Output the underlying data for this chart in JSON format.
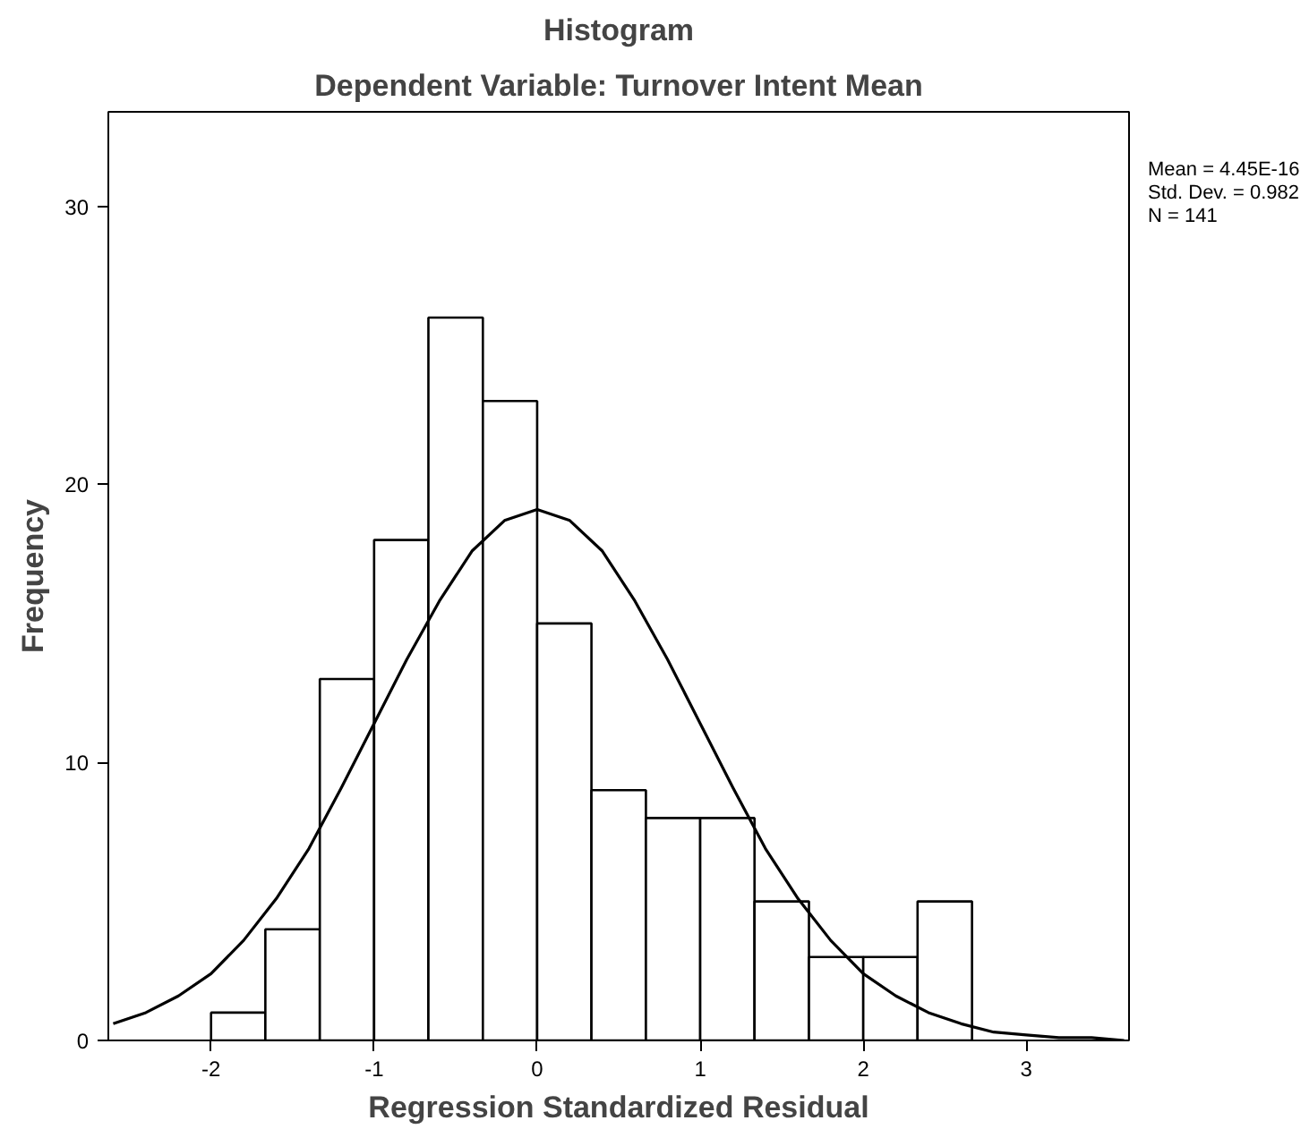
{
  "chart_data": {
    "type": "histogram",
    "title": "Histogram",
    "subtitle": "Dependent Variable: Turnover Intent Mean",
    "xlabel": "Regression Standardized Residual",
    "ylabel": "Frequency",
    "bins": [
      -2,
      -1.667,
      -1.333,
      -1,
      -0.667,
      -0.333,
      0,
      0.333,
      0.667,
      1,
      1.333,
      1.667,
      2,
      2.333,
      2.667
    ],
    "values": [
      1,
      4,
      13,
      18,
      26,
      23,
      15,
      9,
      8,
      8,
      5,
      3,
      3,
      5
    ],
    "color": "#ffffff",
    "series": [
      {
        "type": "line",
        "color": "#000000",
        "x": [
          -2.6,
          -2.4,
          -2.2,
          -2.0,
          -1.8,
          -1.6,
          -1.4,
          -1.2,
          -1.0,
          -0.8,
          -0.6,
          -0.4,
          -0.2,
          0,
          0.2,
          0.4,
          0.6,
          0.8,
          1.0,
          1.2,
          1.4,
          1.6,
          1.8,
          2.0,
          2.2,
          2.4,
          2.6,
          2.8,
          3.0,
          3.2,
          3.4,
          3.6
        ],
        "values": [
          0.6,
          1.0,
          1.6,
          2.4,
          3.6,
          5.1,
          6.9,
          9.1,
          11.4,
          13.7,
          15.8,
          17.6,
          18.7,
          19.1,
          18.7,
          17.6,
          15.8,
          13.7,
          11.4,
          9.1,
          6.9,
          5.1,
          3.6,
          2.4,
          1.6,
          1.0,
          0.6,
          0.3,
          0.2,
          0.1,
          0.1,
          0.0
        ]
      }
    ],
    "xlim": [
      -2.63,
      3.63
    ],
    "ylim": [
      0,
      33.4
    ],
    "xticks": [
      -2,
      -1,
      0,
      1,
      2,
      3
    ],
    "yticks": [
      0,
      10,
      20,
      30
    ],
    "grid": false,
    "annotations": [
      "Mean = 4.45E-16",
      "Std. Dev. = 0.982",
      "N = 141"
    ]
  }
}
